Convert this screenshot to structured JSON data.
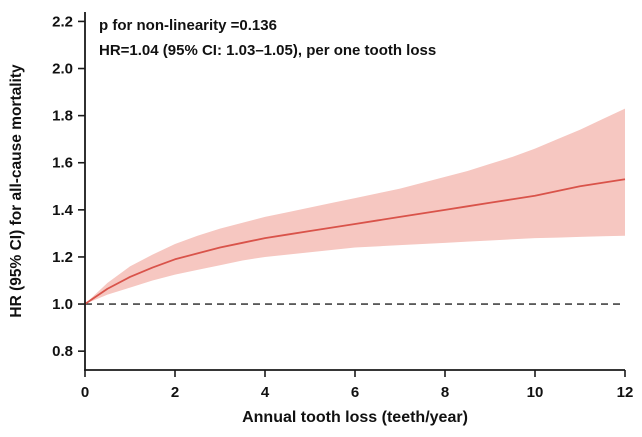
{
  "chart_data": {
    "type": "line",
    "title": "",
    "xlabel": "Annual tooth loss (teeth/year)",
    "ylabel": "HR (95% CI) for all-cause mortality",
    "xlim": [
      0,
      12
    ],
    "ylim": [
      0.72,
      2.24
    ],
    "xticks": [
      0,
      2,
      4,
      6,
      8,
      10,
      12
    ],
    "xtick_labels": [
      "0",
      "2",
      "4",
      "6",
      "8",
      "10",
      "12"
    ],
    "yticks": [
      0.8,
      1.0,
      1.2,
      1.4,
      1.6,
      1.8,
      2.0,
      2.2
    ],
    "ytick_labels": [
      "0.8",
      "1.0",
      "1.2",
      "1.4",
      "1.6",
      "1.8",
      "2.0",
      "2.2"
    ],
    "grid": false,
    "legend": "none",
    "reference_line_y": 1.0,
    "annotations": {
      "line1": "p for non-linearity =0.136",
      "line2": "HR=1.04 (95% CI: 1.03–1.05), per one tooth loss"
    },
    "colors": {
      "line": "#d9534a",
      "band": "#f6c7c1",
      "axis": "#1a1a1a",
      "reference": "#222222"
    },
    "x": [
      0,
      0.5,
      1,
      1.5,
      2,
      2.5,
      3,
      3.5,
      4,
      4.5,
      5,
      5.5,
      6,
      6.5,
      7,
      7.5,
      8,
      8.5,
      9,
      9.5,
      10,
      10.5,
      11,
      11.5,
      12
    ],
    "hr": [
      1.0,
      1.065,
      1.115,
      1.155,
      1.19,
      1.215,
      1.24,
      1.26,
      1.28,
      1.295,
      1.31,
      1.325,
      1.34,
      1.355,
      1.37,
      1.385,
      1.4,
      1.415,
      1.43,
      1.445,
      1.46,
      1.48,
      1.5,
      1.515,
      1.53
    ],
    "ci_upper": [
      1.0,
      1.09,
      1.16,
      1.21,
      1.255,
      1.29,
      1.32,
      1.345,
      1.37,
      1.39,
      1.41,
      1.43,
      1.45,
      1.47,
      1.49,
      1.515,
      1.54,
      1.565,
      1.595,
      1.625,
      1.66,
      1.7,
      1.74,
      1.785,
      1.83
    ],
    "ci_lower": [
      1.0,
      1.04,
      1.07,
      1.1,
      1.125,
      1.145,
      1.165,
      1.185,
      1.2,
      1.21,
      1.22,
      1.23,
      1.24,
      1.245,
      1.25,
      1.255,
      1.26,
      1.265,
      1.27,
      1.275,
      1.28,
      1.282,
      1.285,
      1.288,
      1.29
    ],
    "series_note": "HR curve with 95% CI band; dashed reference at HR=1.0"
  }
}
